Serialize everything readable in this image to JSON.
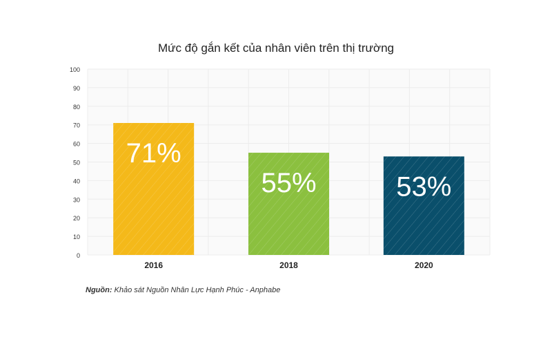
{
  "chart_data": {
    "type": "bar",
    "title": "Mức độ gắn kết của nhân viên trên thị trường",
    "categories": [
      "2016",
      "2018",
      "2020"
    ],
    "values": [
      71,
      55,
      53
    ],
    "data_labels": [
      "71%",
      "55%",
      "53%"
    ],
    "colors": [
      "#f4b91a",
      "#8bc03f",
      "#0a4f6b"
    ],
    "ylim": [
      0,
      100
    ],
    "yticks": [
      "0",
      "10",
      "20",
      "30",
      "40",
      "50",
      "60",
      "70",
      "80",
      "90",
      "100"
    ],
    "xlabel": "",
    "ylabel": "",
    "grid": true,
    "bar_pattern": "diagonal-hatch"
  },
  "source": {
    "label": "Nguồn:",
    "text": "Khảo sát Nguồn Nhân Lực Hạnh Phúc - Anphabe"
  }
}
